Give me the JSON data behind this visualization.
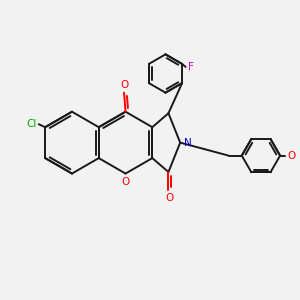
{
  "bg_color": "#f2f2f2",
  "bond_color": "#1a1a1a",
  "atom_colors": {
    "O": "#ff0000",
    "N": "#0000cc",
    "Cl": "#00aa00",
    "F": "#cc00cc"
  },
  "lw": 1.4,
  "fs": 7.5
}
